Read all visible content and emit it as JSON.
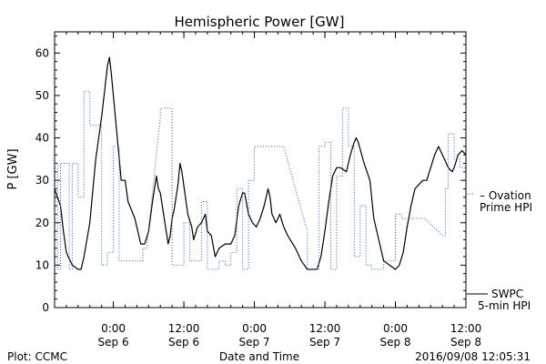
{
  "chart_data": {
    "type": "line",
    "title": "Hemispheric Power [GW]",
    "ylabel": "P [GW]",
    "xlabel": "Date and Time",
    "xlim": [
      "2016-09-05 14:00",
      "2016-09-08 12:00"
    ],
    "ylim": [
      0,
      65
    ],
    "y_ticks": [
      0,
      10,
      20,
      30,
      40,
      50,
      60
    ],
    "x_ticks": [
      {
        "time": "2016-09-06 00:00",
        "line1": "0:00",
        "line2": "Sep 6"
      },
      {
        "time": "2016-09-06 12:00",
        "line1": "12:00",
        "line2": "Sep 6"
      },
      {
        "time": "2016-09-07 00:00",
        "line1": "0:00",
        "line2": "Sep 7"
      },
      {
        "time": "2016-09-07 12:00",
        "line1": "12:00",
        "line2": "Sep 7"
      },
      {
        "time": "2016-09-08 00:00",
        "line1": "0:00",
        "line2": "Sep 8"
      },
      {
        "time": "2016-09-08 12:00",
        "line1": "12:00",
        "line2": "Sep 8"
      }
    ],
    "grid": false,
    "legend_placement": "right",
    "series": [
      {
        "name": "SWPC 5-min HPI",
        "legend_line1": "SWPC",
        "legend_line2": "5-min HPI",
        "color": "#000000",
        "style": "solid",
        "points": [
          [
            "2016-09-05 14:00",
            28
          ],
          [
            "2016-09-05 15:00",
            24
          ],
          [
            "2016-09-05 15:30",
            18
          ],
          [
            "2016-09-05 16:00",
            13
          ],
          [
            "2016-09-05 17:00",
            10
          ],
          [
            "2016-09-05 18:00",
            9
          ],
          [
            "2016-09-05 18:30",
            9
          ],
          [
            "2016-09-05 19:00",
            12
          ],
          [
            "2016-09-05 20:00",
            20
          ],
          [
            "2016-09-05 21:00",
            35
          ],
          [
            "2016-09-05 22:00",
            45
          ],
          [
            "2016-09-05 23:00",
            57
          ],
          [
            "2016-09-05 23:20",
            59
          ],
          [
            "2016-09-05 23:40",
            55
          ],
          [
            "2016-09-06 00:40",
            40
          ],
          [
            "2016-09-06 01:20",
            30
          ],
          [
            "2016-09-06 02:00",
            30
          ],
          [
            "2016-09-06 02:30",
            25
          ],
          [
            "2016-09-06 03:40",
            21
          ],
          [
            "2016-09-06 04:40",
            15
          ],
          [
            "2016-09-06 05:20",
            15
          ],
          [
            "2016-09-06 06:00",
            18
          ],
          [
            "2016-09-06 06:40",
            25
          ],
          [
            "2016-09-06 07:20",
            31
          ],
          [
            "2016-09-06 07:40",
            28
          ],
          [
            "2016-09-06 08:00",
            27
          ],
          [
            "2016-09-06 08:40",
            21
          ],
          [
            "2016-09-06 09:20",
            15
          ],
          [
            "2016-09-06 09:40",
            17
          ],
          [
            "2016-09-06 10:00",
            21
          ],
          [
            "2016-09-06 10:20",
            23
          ],
          [
            "2016-09-06 11:00",
            29
          ],
          [
            "2016-09-06 11:20",
            34
          ],
          [
            "2016-09-06 11:40",
            32
          ],
          [
            "2016-09-06 12:40",
            22
          ],
          [
            "2016-09-06 13:20",
            19
          ],
          [
            "2016-09-06 13:40",
            16
          ],
          [
            "2016-09-06 14:20",
            19
          ],
          [
            "2016-09-06 15:00",
            20
          ],
          [
            "2016-09-06 15:40",
            22
          ],
          [
            "2016-09-06 16:00",
            18
          ],
          [
            "2016-09-06 16:40",
            17
          ],
          [
            "2016-09-06 17:20",
            12
          ],
          [
            "2016-09-06 18:00",
            14
          ],
          [
            "2016-09-06 19:00",
            15
          ],
          [
            "2016-09-06 20:00",
            15
          ],
          [
            "2016-09-06 20:40",
            17
          ],
          [
            "2016-09-06 21:20",
            24
          ],
          [
            "2016-09-06 22:00",
            27
          ],
          [
            "2016-09-06 22:20",
            27
          ],
          [
            "2016-09-06 23:00",
            22
          ],
          [
            "2016-09-06 23:40",
            20
          ],
          [
            "2016-09-07 00:20",
            19
          ],
          [
            "2016-09-07 01:00",
            21
          ],
          [
            "2016-09-07 01:40",
            24
          ],
          [
            "2016-09-07 02:20",
            28
          ],
          [
            "2016-09-07 02:40",
            26
          ],
          [
            "2016-09-07 03:00",
            22
          ],
          [
            "2016-09-07 03:40",
            20
          ],
          [
            "2016-09-07 04:20",
            22
          ],
          [
            "2016-09-07 05:00",
            19
          ],
          [
            "2016-09-07 05:40",
            17
          ],
          [
            "2016-09-07 07:00",
            14
          ],
          [
            "2016-09-07 08:00",
            11
          ],
          [
            "2016-09-07 09:00",
            9
          ],
          [
            "2016-09-07 10:00",
            9
          ],
          [
            "2016-09-07 10:40",
            9
          ],
          [
            "2016-09-07 11:20",
            12
          ],
          [
            "2016-09-07 12:00",
            18
          ],
          [
            "2016-09-07 12:40",
            25
          ],
          [
            "2016-09-07 13:20",
            31
          ],
          [
            "2016-09-07 14:00",
            33
          ],
          [
            "2016-09-07 14:40",
            33
          ],
          [
            "2016-09-07 15:40",
            32
          ],
          [
            "2016-09-07 16:20",
            36
          ],
          [
            "2016-09-07 17:00",
            39
          ],
          [
            "2016-09-07 17:20",
            40
          ],
          [
            "2016-09-07 17:40",
            39
          ],
          [
            "2016-09-07 18:40",
            34
          ],
          [
            "2016-09-07 19:40",
            30
          ],
          [
            "2016-09-07 20:20",
            21
          ],
          [
            "2016-09-07 21:20",
            15
          ],
          [
            "2016-09-07 22:00",
            11
          ],
          [
            "2016-09-07 23:00",
            10
          ],
          [
            "2016-09-08 00:00",
            9
          ],
          [
            "2016-09-08 00:40",
            10
          ],
          [
            "2016-09-08 01:20",
            13
          ],
          [
            "2016-09-08 02:00",
            19
          ],
          [
            "2016-09-08 02:40",
            24
          ],
          [
            "2016-09-08 03:20",
            28
          ],
          [
            "2016-09-08 04:00",
            29
          ],
          [
            "2016-09-08 04:40",
            30
          ],
          [
            "2016-09-08 05:20",
            30
          ],
          [
            "2016-09-08 06:00",
            33
          ],
          [
            "2016-09-08 06:40",
            36
          ],
          [
            "2016-09-08 07:20",
            38
          ],
          [
            "2016-09-08 07:40",
            37
          ],
          [
            "2016-09-08 08:20",
            35
          ],
          [
            "2016-09-08 09:00",
            33
          ],
          [
            "2016-09-08 09:40",
            32
          ],
          [
            "2016-09-08 10:00",
            33
          ],
          [
            "2016-09-08 10:40",
            36
          ],
          [
            "2016-09-08 11:20",
            37
          ],
          [
            "2016-09-08 12:00",
            36
          ]
        ]
      },
      {
        "name": "Ovation Prime HPI",
        "legend_line1": "– Ovation",
        "legend_line2": "Prime HPI",
        "color": "#2060c0",
        "style": "dotted",
        "points": [
          [
            "2016-09-05 14:00",
            34
          ],
          [
            "2016-09-05 14:30",
            34
          ],
          [
            "2016-09-05 14:30",
            9
          ],
          [
            "2016-09-05 15:00",
            9
          ],
          [
            "2016-09-05 15:00",
            34
          ],
          [
            "2016-09-05 16:30",
            34
          ],
          [
            "2016-09-05 16:30",
            9
          ],
          [
            "2016-09-05 17:00",
            9
          ],
          [
            "2016-09-05 17:00",
            34
          ],
          [
            "2016-09-05 18:00",
            34
          ],
          [
            "2016-09-05 18:00",
            26
          ],
          [
            "2016-09-05 19:00",
            26
          ],
          [
            "2016-09-05 19:00",
            51
          ],
          [
            "2016-09-05 20:00",
            51
          ],
          [
            "2016-09-05 20:00",
            43
          ],
          [
            "2016-09-05 22:00",
            43
          ],
          [
            "2016-09-05 22:00",
            10
          ],
          [
            "2016-09-05 23:00",
            10
          ],
          [
            "2016-09-05 23:00",
            13
          ],
          [
            "2016-09-06 00:00",
            13
          ],
          [
            "2016-09-06 00:00",
            38
          ],
          [
            "2016-09-06 01:00",
            38
          ],
          [
            "2016-09-06 01:00",
            11
          ],
          [
            "2016-09-06 05:00",
            11
          ],
          [
            "2016-09-06 05:00",
            14
          ],
          [
            "2016-09-06 05:40",
            14
          ],
          [
            "2016-09-06 08:00",
            45
          ],
          [
            "2016-09-06 08:00",
            47
          ],
          [
            "2016-09-06 10:00",
            47
          ],
          [
            "2016-09-06 10:00",
            10
          ],
          [
            "2016-09-06 12:00",
            10
          ],
          [
            "2016-09-06 12:00",
            20
          ],
          [
            "2016-09-06 13:00",
            20
          ],
          [
            "2016-09-06 13:00",
            11
          ],
          [
            "2016-09-06 15:00",
            11
          ],
          [
            "2016-09-06 15:00",
            25
          ],
          [
            "2016-09-06 16:00",
            25
          ],
          [
            "2016-09-06 16:00",
            9
          ],
          [
            "2016-09-06 18:00",
            9
          ],
          [
            "2016-09-06 18:00",
            11
          ],
          [
            "2016-09-06 19:00",
            11
          ],
          [
            "2016-09-06 19:00",
            10
          ],
          [
            "2016-09-06 20:00",
            10
          ],
          [
            "2016-09-06 20:00",
            13
          ],
          [
            "2016-09-06 21:00",
            13
          ],
          [
            "2016-09-06 21:00",
            28
          ],
          [
            "2016-09-06 22:00",
            28
          ],
          [
            "2016-09-06 22:00",
            9
          ],
          [
            "2016-09-06 23:00",
            9
          ],
          [
            "2016-09-06 23:00",
            30
          ],
          [
            "2016-09-07 00:00",
            30
          ],
          [
            "2016-09-07 00:00",
            38
          ],
          [
            "2016-09-07 05:00",
            38
          ],
          [
            "2016-09-07 09:00",
            18
          ],
          [
            "2016-09-07 09:00",
            9
          ],
          [
            "2016-09-07 11:00",
            9
          ],
          [
            "2016-09-07 11:00",
            38
          ],
          [
            "2016-09-07 12:00",
            38
          ],
          [
            "2016-09-07 12:00",
            39
          ],
          [
            "2016-09-07 13:00",
            39
          ],
          [
            "2016-09-07 13:00",
            9
          ],
          [
            "2016-09-07 14:00",
            9
          ],
          [
            "2016-09-07 14:00",
            31
          ],
          [
            "2016-09-07 15:00",
            31
          ],
          [
            "2016-09-07 15:00",
            47
          ],
          [
            "2016-09-07 16:00",
            47
          ],
          [
            "2016-09-07 16:00",
            38
          ],
          [
            "2016-09-07 17:00",
            38
          ],
          [
            "2016-09-07 17:00",
            12
          ],
          [
            "2016-09-07 18:00",
            12
          ],
          [
            "2016-09-07 18:00",
            24
          ],
          [
            "2016-09-07 19:00",
            24
          ],
          [
            "2016-09-07 19:00",
            10
          ],
          [
            "2016-09-07 20:00",
            10
          ],
          [
            "2016-09-07 20:00",
            9
          ],
          [
            "2016-09-07 22:00",
            9
          ],
          [
            "2016-09-07 22:00",
            11
          ],
          [
            "2016-09-08 00:00",
            11
          ],
          [
            "2016-09-08 00:00",
            22
          ],
          [
            "2016-09-08 01:00",
            22
          ],
          [
            "2016-09-08 01:00",
            21
          ],
          [
            "2016-09-08 05:00",
            21
          ],
          [
            "2016-09-08 08:00",
            17
          ],
          [
            "2016-09-08 08:30",
            17
          ],
          [
            "2016-09-08 08:30",
            28
          ],
          [
            "2016-09-08 09:00",
            28
          ],
          [
            "2016-09-08 09:00",
            41
          ],
          [
            "2016-09-08 10:00",
            41
          ],
          [
            "2016-09-08 10:00",
            35
          ],
          [
            "2016-09-08 11:00",
            35
          ],
          [
            "2016-09-08 11:00",
            33
          ],
          [
            "2016-09-08 12:00",
            33
          ]
        ]
      }
    ]
  },
  "footer": {
    "left": "Plot: CCMC",
    "right": "2016/09/08 12:05:31"
  }
}
